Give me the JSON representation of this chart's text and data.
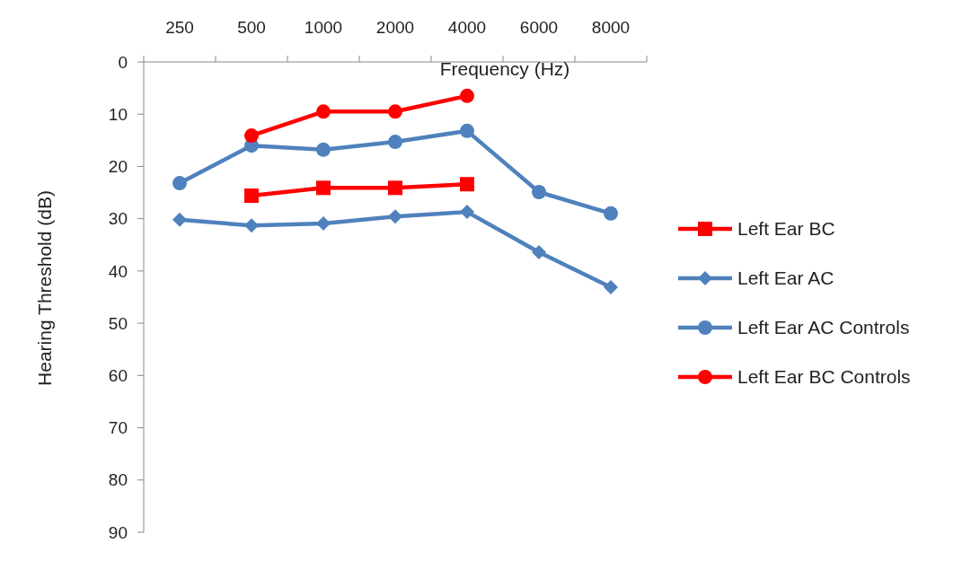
{
  "chart_data": {
    "type": "line",
    "xlabel": "Frequency (Hz)",
    "ylabel": "Hearing Threshold (dB)",
    "categories": [
      "250",
      "500",
      "1000",
      "2000",
      "4000",
      "6000",
      "8000"
    ],
    "ylim": [
      90,
      0
    ],
    "yticks": [
      0,
      10,
      20,
      30,
      40,
      50,
      60,
      70,
      80,
      90
    ],
    "grid": false,
    "legend": "right",
    "line_style": "solid",
    "series": [
      {
        "name": "Left Ear BC",
        "color": "#ff0000",
        "marker": "square",
        "values": [
          null,
          25.6,
          24.1,
          24.1,
          23.4,
          null,
          null
        ]
      },
      {
        "name": "Left Ear AC",
        "color": "#4f81bd",
        "marker": "diamond",
        "values": [
          30.2,
          31.3,
          30.9,
          29.6,
          28.7,
          36.4,
          43.1
        ]
      },
      {
        "name": "Left Ear AC Controls",
        "color": "#4f81bd",
        "marker": "circle",
        "values": [
          23.2,
          16.0,
          16.8,
          15.3,
          13.2,
          24.9,
          29.0
        ]
      },
      {
        "name": "Left Ear BC Controls",
        "color": "#ff0000",
        "marker": "circle",
        "values": [
          null,
          14.1,
          9.5,
          9.5,
          6.5,
          null,
          null
        ]
      }
    ]
  }
}
